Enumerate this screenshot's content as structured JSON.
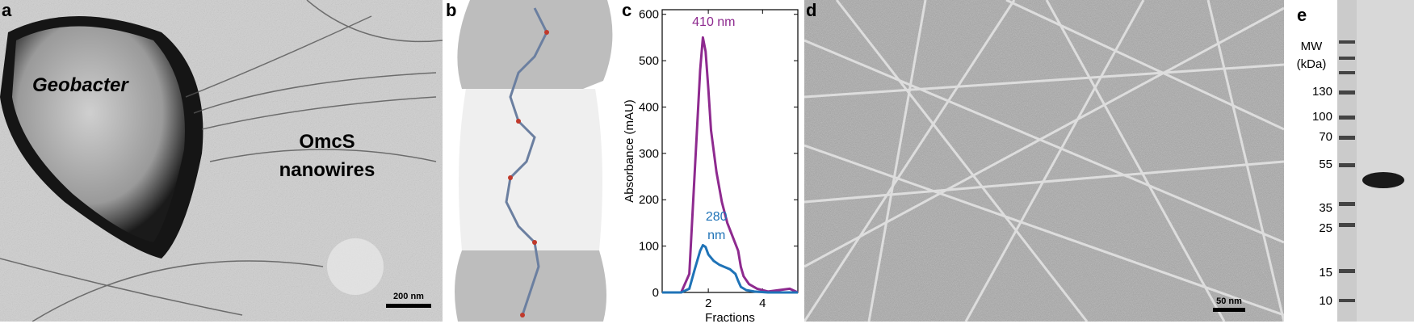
{
  "panels": {
    "a": {
      "label": "a",
      "cell_label": "Geobacter",
      "wire_label_line1": "OmcS",
      "wire_label_line2": "nanowires",
      "scale_bar": "200 nm"
    },
    "b": {
      "label": "b"
    },
    "c": {
      "label": "c"
    },
    "d": {
      "label": "d",
      "scale_bar": "50 nm"
    },
    "e": {
      "label": "e",
      "mw_title_line1": "MW",
      "mw_title_line2": "(kDa)",
      "markers": [
        "130",
        "100",
        "70",
        "55",
        "35",
        "25",
        "15",
        "10"
      ]
    }
  },
  "chart_data": {
    "type": "line",
    "xlabel": "Fractions",
    "ylabel": "Absorbance (mAU)",
    "xlim": [
      0.3,
      5.3
    ],
    "ylim": [
      0,
      610
    ],
    "x_ticks": [
      "2",
      "4"
    ],
    "y_ticks": [
      "0",
      "100",
      "200",
      "300",
      "400",
      "500",
      "600"
    ],
    "series": [
      {
        "name": "410 nm",
        "color": "#8e2a8f",
        "x": [
          0.3,
          1.0,
          1.3,
          1.5,
          1.7,
          1.8,
          1.9,
          2.0,
          2.1,
          2.3,
          2.5,
          2.7,
          2.9,
          3.1,
          3.2,
          3.3,
          3.5,
          3.8,
          4.2,
          4.6,
          5.0,
          5.3
        ],
        "y": [
          0,
          0,
          40,
          260,
          480,
          550,
          520,
          440,
          350,
          260,
          195,
          150,
          120,
          90,
          55,
          35,
          18,
          8,
          2,
          5,
          8,
          0
        ]
      },
      {
        "name": "280 nm",
        "name_line1": "280",
        "name_line2": "nm",
        "color": "#1f73b7",
        "x": [
          0.3,
          1.0,
          1.3,
          1.5,
          1.7,
          1.8,
          1.9,
          2.0,
          2.2,
          2.4,
          2.6,
          2.8,
          3.0,
          3.1,
          3.2,
          3.4,
          3.7,
          4.2,
          5.3
        ],
        "y": [
          0,
          0,
          8,
          50,
          90,
          102,
          98,
          82,
          68,
          60,
          55,
          50,
          40,
          25,
          12,
          5,
          2,
          0,
          0
        ]
      }
    ]
  }
}
